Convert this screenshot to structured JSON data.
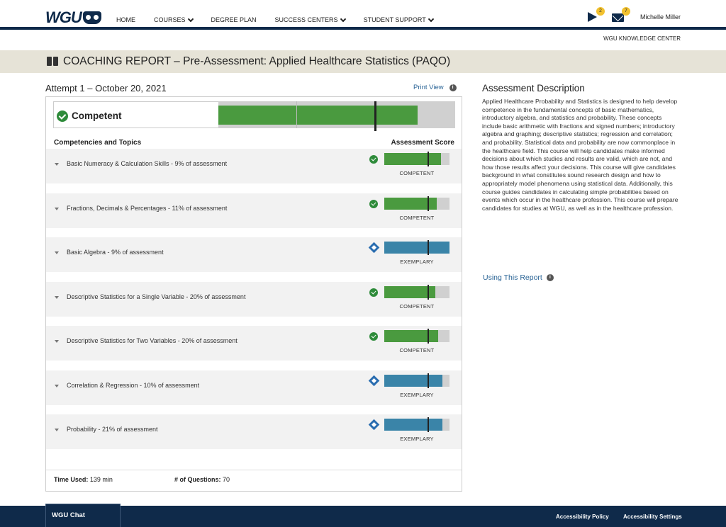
{
  "nav": {
    "logo": "WGU",
    "items": [
      {
        "label": "HOME",
        "dropdown": false
      },
      {
        "label": "COURSES",
        "dropdown": true
      },
      {
        "label": "DEGREE PLAN",
        "dropdown": false
      },
      {
        "label": "SUCCESS CENTERS",
        "dropdown": true
      },
      {
        "label": "STUDENT SUPPORT",
        "dropdown": true
      }
    ],
    "announcements_badge": "2",
    "messages_badge": "7",
    "user_name": "Michelle Miller",
    "knowledge_center": "WGU KNOWLEDGE CENTER"
  },
  "page": {
    "title": "COACHING REPORT – Pre-Assessment: Applied Healthcare Statistics (PAQO)",
    "attempt": "Attempt 1 – October 20, 2021",
    "print_view": "Print View"
  },
  "report": {
    "overall_label": "Competent",
    "overall_fill": 0.84,
    "overall_marker": 0.66,
    "col_left": "Competencies and Topics",
    "col_right": "Assessment Score",
    "rows": [
      {
        "label": "Basic Numeracy & Calculation Skills - 9% of assessment",
        "rating": "COMPETENT",
        "status": "competent",
        "fill": 0.87,
        "marker": 0.66
      },
      {
        "label": "Fractions, Decimals & Percentages - 11% of assessment",
        "rating": "COMPETENT",
        "status": "competent",
        "fill": 0.8,
        "marker": 0.66
      },
      {
        "label": "Basic Algebra - 9% of assessment",
        "rating": "EXEMPLARY",
        "status": "exemplary",
        "fill": 1.0,
        "marker": 0.66
      },
      {
        "label": "Descriptive Statistics for a Single Variable - 20% of assessment",
        "rating": "COMPETENT",
        "status": "competent",
        "fill": 0.78,
        "marker": 0.66
      },
      {
        "label": "Descriptive Statistics for Two Variables - 20% of assessment",
        "rating": "COMPETENT",
        "status": "competent",
        "fill": 0.83,
        "marker": 0.66
      },
      {
        "label": "Correlation & Regression - 10% of assessment",
        "rating": "EXEMPLARY",
        "status": "exemplary",
        "fill": 0.89,
        "marker": 0.66
      },
      {
        "label": "Probability - 21% of assessment",
        "rating": "EXEMPLARY",
        "status": "exemplary",
        "fill": 0.89,
        "marker": 0.66
      }
    ],
    "time_used_label": "Time Used:",
    "time_used_value": "139 min",
    "questions_label": "# of Questions:",
    "questions_value": "70"
  },
  "description": {
    "heading": "Assessment Description",
    "body": "Applied Healthcare Probability and Statistics is designed to help develop competence in the fundamental concepts of basic mathematics, introductory algebra, and statistics and probability. These concepts include basic arithmetic with fractions and signed numbers; introductory algebra and graphing; descriptive statistics; regression and correlation; and probability. Statistical data and probability are now commonplace in the healthcare field. This course will help candidates make informed decisions about which studies and results are valid, which are not, and how those results affect your decisions. This course will give candidates background in what constitutes sound research design and how to appropriately model phenomena using statistical data. Additionally, this course guides candidates in calculating simple probabilities based on events which occur in the healthcare profession. This course will prepare candidates for studies at WGU, as well as in the healthcare profession.",
    "using_report": "Using This Report"
  },
  "footer": {
    "chat": "WGU Chat",
    "accessibility_policy": "Accessibility Policy",
    "accessibility_settings": "Accessibility Settings"
  },
  "colors": {
    "navy": "#0f2a4a",
    "competent": "#4a9a3f",
    "exemplary": "#3a84a8",
    "track": "#d0d0d0",
    "badge": "#f2c12e",
    "link": "#2a6496"
  },
  "icons": [
    "owl-logo-icon",
    "chevron-down-icon",
    "megaphone-icon",
    "envelope-icon",
    "book-icon",
    "info-icon",
    "check-circle-icon",
    "diamond-icon",
    "caret-down-icon"
  ]
}
